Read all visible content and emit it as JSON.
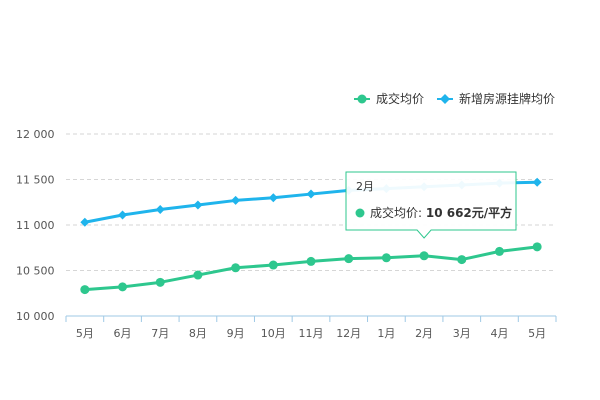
{
  "chart_data": {
    "type": "line",
    "categories": [
      "5月",
      "6月",
      "7月",
      "8月",
      "9月",
      "10月",
      "11月",
      "12月",
      "1月",
      "2月",
      "3月",
      "4月",
      "5月"
    ],
    "series": [
      {
        "name": "成交均价",
        "color": "#2ec78e",
        "values": [
          10290,
          10320,
          10370,
          10450,
          10530,
          10560,
          10600,
          10630,
          10640,
          10662,
          10620,
          10710,
          10760
        ]
      },
      {
        "name": "新增房源挂牌均价",
        "color": "#1fb4ec",
        "values": [
          11030,
          11110,
          11170,
          11220,
          11270,
          11300,
          11340,
          11380,
          11400,
          11420,
          11440,
          11460,
          11470
        ]
      }
    ],
    "ylim": [
      10000,
      12000
    ],
    "yticks": [
      10000,
      10500,
      11000,
      11500,
      12000
    ],
    "ytick_labels": [
      "10 000",
      "10 500",
      "11 000",
      "11 500",
      "12 000"
    ],
    "grid": true,
    "legend_position": "top-right",
    "tooltip": {
      "category": "2月",
      "series_label": "成交均价:",
      "value_text": "10 662元/平方"
    }
  }
}
